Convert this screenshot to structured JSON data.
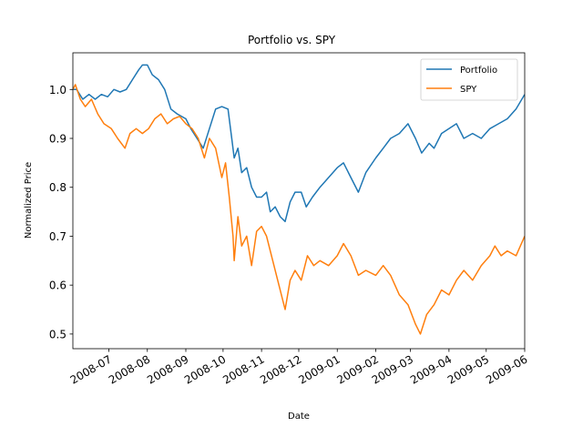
{
  "chart_data": {
    "type": "line",
    "title": "Portfolio vs. SPY",
    "xlabel": "Date",
    "ylabel": "Normalized Price",
    "x_range": [
      "2008-06-02",
      "2009-06-01"
    ],
    "ylim": [
      0.47,
      1.075
    ],
    "x_ticks": [
      "2008-07",
      "2008-08",
      "2008-09",
      "2008-10",
      "2008-11",
      "2008-12",
      "2009-01",
      "2009-02",
      "2009-03",
      "2009-04",
      "2009-05",
      "2009-06"
    ],
    "y_ticks": [
      "0.5",
      "0.6",
      "0.7",
      "0.8",
      "0.9",
      "1.0"
    ],
    "grid": false,
    "legend_position": "top-right",
    "series": [
      {
        "name": "Portfolio",
        "color": "#1f77b4",
        "points": [
          [
            "2008-06-02",
            1.0
          ],
          [
            "2008-06-05",
            1.0
          ],
          [
            "2008-06-10",
            0.98
          ],
          [
            "2008-06-15",
            0.99
          ],
          [
            "2008-06-20",
            0.98
          ],
          [
            "2008-06-25",
            0.99
          ],
          [
            "2008-06-30",
            0.985
          ],
          [
            "2008-07-05",
            1.0
          ],
          [
            "2008-07-10",
            0.995
          ],
          [
            "2008-07-15",
            1.0
          ],
          [
            "2008-07-20",
            1.02
          ],
          [
            "2008-07-25",
            1.04
          ],
          [
            "2008-07-28",
            1.05
          ],
          [
            "2008-08-01",
            1.05
          ],
          [
            "2008-08-05",
            1.03
          ],
          [
            "2008-08-10",
            1.02
          ],
          [
            "2008-08-15",
            1.0
          ],
          [
            "2008-08-20",
            0.96
          ],
          [
            "2008-08-25",
            0.95
          ],
          [
            "2008-09-01",
            0.94
          ],
          [
            "2008-09-05",
            0.92
          ],
          [
            "2008-09-10",
            0.9
          ],
          [
            "2008-09-15",
            0.88
          ],
          [
            "2008-09-20",
            0.92
          ],
          [
            "2008-09-25",
            0.96
          ],
          [
            "2008-09-30",
            0.965
          ],
          [
            "2008-10-05",
            0.96
          ],
          [
            "2008-10-08",
            0.9
          ],
          [
            "2008-10-10",
            0.86
          ],
          [
            "2008-10-13",
            0.88
          ],
          [
            "2008-10-16",
            0.83
          ],
          [
            "2008-10-20",
            0.84
          ],
          [
            "2008-10-24",
            0.8
          ],
          [
            "2008-10-28",
            0.78
          ],
          [
            "2008-11-01",
            0.78
          ],
          [
            "2008-11-05",
            0.79
          ],
          [
            "2008-11-08",
            0.75
          ],
          [
            "2008-11-12",
            0.76
          ],
          [
            "2008-11-16",
            0.74
          ],
          [
            "2008-11-20",
            0.73
          ],
          [
            "2008-11-24",
            0.77
          ],
          [
            "2008-11-28",
            0.79
          ],
          [
            "2008-12-03",
            0.79
          ],
          [
            "2008-12-07",
            0.76
          ],
          [
            "2008-12-12",
            0.78
          ],
          [
            "2008-12-18",
            0.8
          ],
          [
            "2008-12-25",
            0.82
          ],
          [
            "2009-01-01",
            0.84
          ],
          [
            "2009-01-06",
            0.85
          ],
          [
            "2009-01-12",
            0.82
          ],
          [
            "2009-01-18",
            0.79
          ],
          [
            "2009-01-24",
            0.83
          ],
          [
            "2009-02-01",
            0.86
          ],
          [
            "2009-02-07",
            0.88
          ],
          [
            "2009-02-13",
            0.9
          ],
          [
            "2009-02-20",
            0.91
          ],
          [
            "2009-02-27",
            0.93
          ],
          [
            "2009-03-05",
            0.9
          ],
          [
            "2009-03-10",
            0.87
          ],
          [
            "2009-03-16",
            0.89
          ],
          [
            "2009-03-20",
            0.88
          ],
          [
            "2009-03-26",
            0.91
          ],
          [
            "2009-04-01",
            0.92
          ],
          [
            "2009-04-07",
            0.93
          ],
          [
            "2009-04-13",
            0.9
          ],
          [
            "2009-04-20",
            0.91
          ],
          [
            "2009-04-27",
            0.9
          ],
          [
            "2009-05-04",
            0.92
          ],
          [
            "2009-05-11",
            0.93
          ],
          [
            "2009-05-18",
            0.94
          ],
          [
            "2009-05-25",
            0.96
          ],
          [
            "2009-06-01",
            0.99
          ]
        ]
      },
      {
        "name": "SPY",
        "color": "#ff7f0e",
        "points": [
          [
            "2008-06-02",
            1.0
          ],
          [
            "2008-06-04",
            1.01
          ],
          [
            "2008-06-08",
            0.98
          ],
          [
            "2008-06-12",
            0.965
          ],
          [
            "2008-06-17",
            0.98
          ],
          [
            "2008-06-22",
            0.95
          ],
          [
            "2008-06-27",
            0.93
          ],
          [
            "2008-07-03",
            0.92
          ],
          [
            "2008-07-08",
            0.9
          ],
          [
            "2008-07-14",
            0.88
          ],
          [
            "2008-07-18",
            0.91
          ],
          [
            "2008-07-23",
            0.92
          ],
          [
            "2008-07-28",
            0.91
          ],
          [
            "2008-08-02",
            0.92
          ],
          [
            "2008-08-07",
            0.94
          ],
          [
            "2008-08-12",
            0.95
          ],
          [
            "2008-08-17",
            0.93
          ],
          [
            "2008-08-22",
            0.94
          ],
          [
            "2008-08-27",
            0.945
          ],
          [
            "2008-09-01",
            0.93
          ],
          [
            "2008-09-06",
            0.92
          ],
          [
            "2008-09-11",
            0.9
          ],
          [
            "2008-09-16",
            0.86
          ],
          [
            "2008-09-20",
            0.9
          ],
          [
            "2008-09-25",
            0.88
          ],
          [
            "2008-09-30",
            0.82
          ],
          [
            "2008-10-03",
            0.85
          ],
          [
            "2008-10-06",
            0.78
          ],
          [
            "2008-10-09",
            0.7
          ],
          [
            "2008-10-10",
            0.65
          ],
          [
            "2008-10-13",
            0.74
          ],
          [
            "2008-10-16",
            0.68
          ],
          [
            "2008-10-20",
            0.7
          ],
          [
            "2008-10-24",
            0.64
          ],
          [
            "2008-10-28",
            0.71
          ],
          [
            "2008-11-01",
            0.72
          ],
          [
            "2008-11-05",
            0.7
          ],
          [
            "2008-11-10",
            0.65
          ],
          [
            "2008-11-15",
            0.6
          ],
          [
            "2008-11-20",
            0.55
          ],
          [
            "2008-11-24",
            0.61
          ],
          [
            "2008-11-28",
            0.63
          ],
          [
            "2008-12-03",
            0.61
          ],
          [
            "2008-12-08",
            0.66
          ],
          [
            "2008-12-13",
            0.64
          ],
          [
            "2008-12-18",
            0.65
          ],
          [
            "2008-12-25",
            0.64
          ],
          [
            "2009-01-01",
            0.66
          ],
          [
            "2009-01-06",
            0.685
          ],
          [
            "2009-01-12",
            0.66
          ],
          [
            "2009-01-18",
            0.62
          ],
          [
            "2009-01-24",
            0.63
          ],
          [
            "2009-02-01",
            0.62
          ],
          [
            "2009-02-07",
            0.64
          ],
          [
            "2009-02-13",
            0.62
          ],
          [
            "2009-02-20",
            0.58
          ],
          [
            "2009-02-27",
            0.56
          ],
          [
            "2009-03-05",
            0.52
          ],
          [
            "2009-03-09",
            0.5
          ],
          [
            "2009-03-14",
            0.54
          ],
          [
            "2009-03-20",
            0.56
          ],
          [
            "2009-03-26",
            0.59
          ],
          [
            "2009-04-01",
            0.58
          ],
          [
            "2009-04-07",
            0.61
          ],
          [
            "2009-04-13",
            0.63
          ],
          [
            "2009-04-20",
            0.61
          ],
          [
            "2009-04-27",
            0.64
          ],
          [
            "2009-05-04",
            0.66
          ],
          [
            "2009-05-08",
            0.68
          ],
          [
            "2009-05-13",
            0.66
          ],
          [
            "2009-05-18",
            0.67
          ],
          [
            "2009-05-25",
            0.66
          ],
          [
            "2009-06-01",
            0.7
          ]
        ]
      }
    ]
  }
}
